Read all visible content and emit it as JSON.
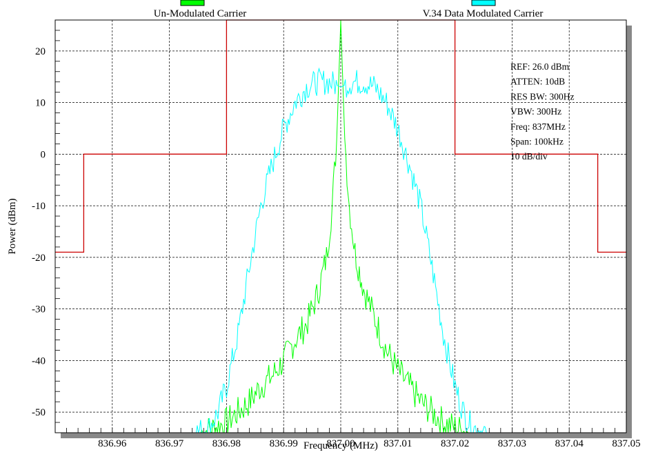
{
  "chart_data": {
    "type": "line",
    "title": "",
    "xlabel": "Frequency (MHz)",
    "ylabel": "Power (dBm)",
    "xlim": [
      836.95,
      837.05
    ],
    "ylim": [
      -54,
      26
    ],
    "x_ticks": [
      "836.96",
      "836.97",
      "836.98",
      "836.99",
      "837.00",
      "837.01",
      "837.02",
      "837.03",
      "837.04",
      "837.05"
    ],
    "y_ticks": [
      "20",
      "10",
      "0",
      "-10",
      "-20",
      "-30",
      "-40",
      "-50"
    ],
    "grid": true,
    "legend_position": "top",
    "legend": [
      {
        "label": "Un-Modulated Carrier",
        "color": "#00ff00"
      },
      {
        "label": "V.34 Data Modulated Carrier",
        "color": "#00ffff"
      }
    ],
    "annotations": [
      "REF: 26.0 dBm",
      "ATTEN: 10dB",
      "RES BW: 300Hz",
      "VBW: 300Hz",
      "Freq: 837MHz",
      "Span: 100kHz",
      "10 dB/div"
    ],
    "series": [
      {
        "name": "Un-Modulated Carrier",
        "color": "#00ff00",
        "x": [
          836.9755,
          836.978,
          836.98,
          836.982,
          836.984,
          836.986,
          836.988,
          836.99,
          836.992,
          836.994,
          836.996,
          836.9975,
          836.9985,
          836.9993,
          837.0,
          837.0007,
          837.0015,
          837.0025,
          837.004,
          837.006,
          837.008,
          837.01,
          837.012,
          837.014,
          837.016,
          837.018,
          837.02,
          837.0225
        ],
        "values": [
          -54,
          -53,
          -52,
          -50,
          -48,
          -45,
          -43,
          -40,
          -36,
          -33,
          -27,
          -20,
          -10,
          3,
          26,
          3,
          -10,
          -19,
          -26,
          -32,
          -38,
          -42,
          -45,
          -48,
          -50,
          -52,
          -53,
          -54
        ]
      },
      {
        "name": "V.34 Data Modulated Carrier",
        "color": "#00ffff",
        "x": [
          836.9745,
          836.977,
          836.9785,
          836.98,
          836.982,
          836.984,
          836.986,
          836.988,
          836.99,
          836.992,
          836.994,
          836.996,
          836.998,
          837.0,
          837.002,
          837.004,
          837.006,
          837.008,
          837.01,
          837.012,
          837.014,
          837.016,
          837.018,
          837.02,
          837.0215,
          837.023,
          837.0255
        ],
        "values": [
          -54,
          -53,
          -50,
          -45,
          -35,
          -22,
          -10,
          -2,
          5,
          10,
          13,
          14,
          14,
          13,
          14,
          14,
          13,
          10,
          5,
          -2,
          -10,
          -22,
          -35,
          -45,
          -50,
          -53,
          -54
        ]
      },
      {
        "name": "",
        "color": "#cc0000",
        "x": [
          836.95,
          836.955,
          836.955,
          836.98,
          836.98,
          837.02,
          837.02,
          837.045,
          837.045,
          837.05
        ],
        "values": [
          -19,
          -19,
          0,
          0,
          26,
          26,
          0,
          0,
          -19,
          -19
        ]
      }
    ]
  }
}
